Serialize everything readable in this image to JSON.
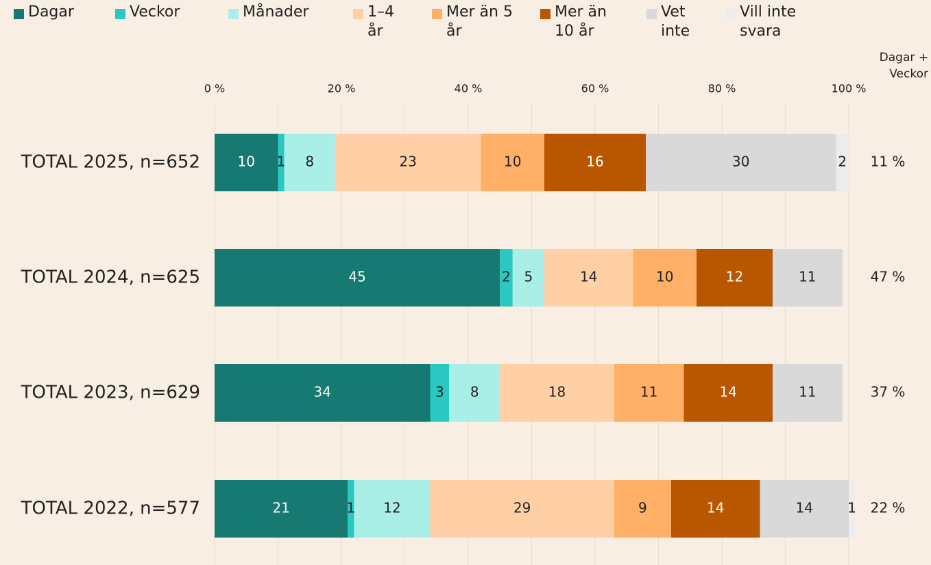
{
  "chart_data": {
    "type": "stacked-barh",
    "categories": [
      "TOTAL 2025, n=652",
      "TOTAL 2024, n=625",
      "TOTAL 2023, n=629",
      "TOTAL 2022, n=577"
    ],
    "series": [
      {
        "name": "Dagar",
        "color": "#167a72",
        "values": [
          10,
          45,
          34,
          21
        ]
      },
      {
        "name": "Veckor",
        "color": "#2ac8c0",
        "values": [
          1,
          2,
          3,
          1
        ]
      },
      {
        "name": "Månader",
        "color": "#aaeee8",
        "values": [
          8,
          5,
          8,
          12
        ]
      },
      {
        "name": "1–4 år",
        "color": "#ffd0a6",
        "values": [
          23,
          14,
          18,
          29
        ]
      },
      {
        "name": "Mer än 5 år",
        "color": "#ffaf66",
        "values": [
          10,
          10,
          11,
          9
        ]
      },
      {
        "name": "Mer än 10 år",
        "color": "#b95600",
        "values": [
          16,
          12,
          14,
          14
        ]
      },
      {
        "name": "Vet inte",
        "color": "#d9d9d9",
        "values": [
          30,
          11,
          11,
          14
        ]
      },
      {
        "name": "Vill inte svara",
        "color": "#ececec",
        "values": [
          2,
          null,
          null,
          1
        ]
      }
    ],
    "xlim": [
      0,
      100
    ],
    "xticks": [
      {
        "value": 0,
        "label": "0 %"
      },
      {
        "value": 20,
        "label": "20 %"
      },
      {
        "value": 40,
        "label": "40 %"
      },
      {
        "value": 60,
        "label": "60 %"
      },
      {
        "value": 80,
        "label": "80 %"
      },
      {
        "value": 100,
        "label": "100 %"
      }
    ],
    "xminorticks": [
      10,
      30,
      50,
      70,
      90
    ],
    "grid": true,
    "legend": "top",
    "summary": {
      "title": "Dagar + Veckor",
      "values": [
        11,
        47,
        37,
        22
      ],
      "value_labels": [
        "11 %",
        "47 %",
        "37 %",
        "22 %"
      ]
    }
  }
}
